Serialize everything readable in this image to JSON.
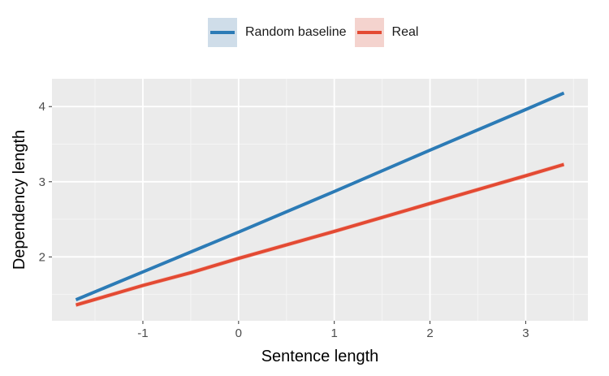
{
  "chart_data": {
    "type": "line",
    "title": "",
    "xlabel": "Sentence length",
    "ylabel": "Dependency length",
    "xlim": [
      -1.95,
      3.65
    ],
    "ylim": [
      1.15,
      4.37
    ],
    "x_ticks": [
      -1,
      0,
      1,
      2,
      3
    ],
    "y_ticks": [
      2,
      3,
      4
    ],
    "x_tick_labels": [
      "-1",
      "0",
      "1",
      "2",
      "3"
    ],
    "y_tick_labels": [
      "2",
      "3",
      "4"
    ],
    "grid": true,
    "legend_position": "top",
    "series": [
      {
        "name": "Random baseline",
        "color": "#2c7bb6",
        "band_color": "#b7cbdc",
        "x": [
          -1.7,
          -1.0,
          0.0,
          1.0,
          2.0,
          3.0,
          3.4
        ],
        "y": [
          1.43,
          1.8,
          2.33,
          2.87,
          3.42,
          3.96,
          4.18
        ],
        "band": 0.015
      },
      {
        "name": "Real",
        "color": "#e34a33",
        "band_color": "#f2c4bd",
        "x": [
          -1.7,
          -1.0,
          -0.5,
          0.0,
          1.0,
          2.0,
          3.0,
          3.4
        ],
        "y": [
          1.36,
          1.62,
          1.79,
          1.98,
          2.34,
          2.71,
          3.08,
          3.23
        ],
        "band": 0.03
      }
    ]
  }
}
